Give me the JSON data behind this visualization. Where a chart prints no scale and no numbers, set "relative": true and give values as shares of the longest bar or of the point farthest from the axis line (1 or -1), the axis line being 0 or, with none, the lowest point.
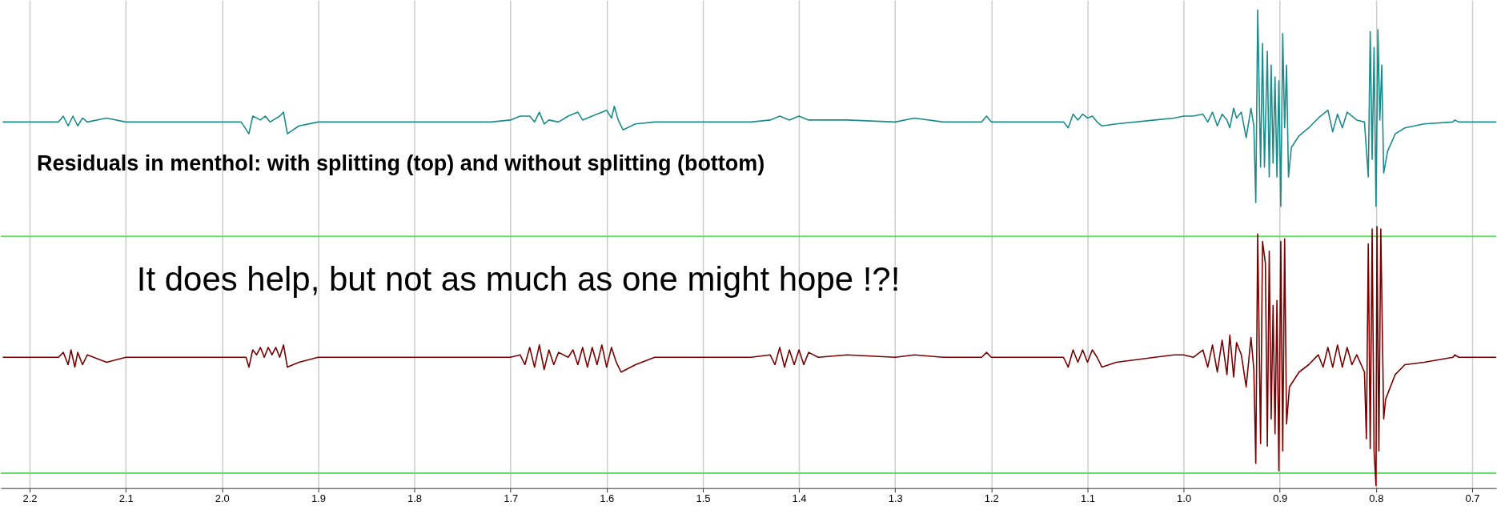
{
  "chart_data": [
    {
      "type": "line",
      "relative": true,
      "title": "Residuals in menthol: with splitting (top) and without splitting (bottom)",
      "grid": "x",
      "tick_labels": false,
      "xlim": [
        2.23,
        0.675
      ],
      "xticks": [
        2.2,
        2.1,
        2,
        1.9,
        1.8,
        1.7,
        1.6,
        1.5,
        1.4,
        1.3,
        1.2,
        1.1,
        1,
        0.9,
        0.8,
        0.7
      ],
      "series": [
        {
          "color": "#1a8c8c",
          "x": [
            2.228,
            2.17,
            2.165,
            2.16,
            2.155,
            2.15,
            2.145,
            2.14,
            2.12,
            2.1,
            2.0,
            1.98,
            1.972,
            1.968,
            1.96,
            1.955,
            1.95,
            1.94,
            1.936,
            1.932,
            1.92,
            1.9,
            1.8,
            1.72,
            1.7,
            1.69,
            1.68,
            1.675,
            1.67,
            1.665,
            1.66,
            1.65,
            1.64,
            1.63,
            1.625,
            1.61,
            1.6,
            1.595,
            1.592,
            1.588,
            1.583,
            1.57,
            1.55,
            1.45,
            1.43,
            1.42,
            1.41,
            1.4,
            1.39,
            1.35,
            1.3,
            1.28,
            1.25,
            1.21,
            1.205,
            1.2,
            1.15,
            1.125,
            1.12,
            1.115,
            1.11,
            1.105,
            1.1,
            1.095,
            1.09,
            1.085,
            1.07,
            1.03,
            1.01,
            1.0,
            0.99,
            0.98,
            0.975,
            0.97,
            0.965,
            0.96,
            0.955,
            0.952,
            0.948,
            0.945,
            0.94,
            0.935,
            0.93,
            0.927,
            0.925,
            0.923,
            0.92,
            0.918,
            0.916,
            0.913,
            0.911,
            0.909,
            0.907,
            0.905,
            0.903,
            0.901,
            0.899,
            0.897,
            0.895,
            0.893,
            0.891,
            0.888,
            0.88,
            0.87,
            0.86,
            0.85,
            0.845,
            0.84,
            0.835,
            0.83,
            0.82,
            0.812,
            0.808,
            0.806,
            0.804,
            0.802,
            0.8,
            0.798,
            0.796,
            0.794,
            0.792,
            0.788,
            0.78,
            0.77,
            0.75,
            0.72,
            0.718,
            0.714,
            0.7,
            0.675
          ],
          "values": [
            0.43,
            0.43,
            0.46,
            0.41,
            0.46,
            0.41,
            0.45,
            0.43,
            0.45,
            0.43,
            0.43,
            0.43,
            0.37,
            0.46,
            0.44,
            0.46,
            0.43,
            0.46,
            0.48,
            0.37,
            0.41,
            0.43,
            0.43,
            0.43,
            0.44,
            0.46,
            0.46,
            0.43,
            0.48,
            0.42,
            0.44,
            0.43,
            0.46,
            0.48,
            0.44,
            0.47,
            0.49,
            0.45,
            0.51,
            0.44,
            0.39,
            0.42,
            0.43,
            0.43,
            0.44,
            0.46,
            0.44,
            0.46,
            0.44,
            0.44,
            0.43,
            0.45,
            0.43,
            0.43,
            0.46,
            0.43,
            0.43,
            0.43,
            0.4,
            0.47,
            0.44,
            0.47,
            0.45,
            0.46,
            0.43,
            0.41,
            0.42,
            0.44,
            0.45,
            0.46,
            0.46,
            0.47,
            0.43,
            0.48,
            0.41,
            0.47,
            0.44,
            0.4,
            0.5,
            0.45,
            0.48,
            0.35,
            0.5,
            0.41,
            0.02,
            1,
            0.2,
            0.83,
            0.2,
            0.79,
            0.15,
            0.72,
            0.22,
            0.66,
            0.15,
            0.64,
            0,
            0.88,
            0.4,
            0.72,
            0.15,
            0.3,
            0.36,
            0.4,
            0.45,
            0.49,
            0.38,
            0.47,
            0.4,
            0.48,
            0.44,
            0.43,
            0.15,
            0.89,
            0.24,
            0.81,
            0,
            0.9,
            0.44,
            0.72,
            0.17,
            0.28,
            0.37,
            0.4,
            0.42,
            0.43,
            0.44,
            0.43,
            0.43,
            0.43
          ]
        }
      ]
    },
    {
      "type": "line",
      "relative": true,
      "annotations": [
        "It does help, but not as much as one might hope !?!"
      ],
      "grid": "x",
      "xlim": [
        2.23,
        0.675
      ],
      "xticks": [
        {
          "value": 2.2,
          "label": "2.2"
        },
        {
          "value": 2.1,
          "label": "2.1"
        },
        {
          "value": 2.0,
          "label": "2.0"
        },
        {
          "value": 1.9,
          "label": "1.9"
        },
        {
          "value": 1.8,
          "label": "1.8"
        },
        {
          "value": 1.7,
          "label": "1.7"
        },
        {
          "value": 1.6,
          "label": "1.6"
        },
        {
          "value": 1.5,
          "label": "1.5"
        },
        {
          "value": 1.4,
          "label": "1.4"
        },
        {
          "value": 1.3,
          "label": "1.3"
        },
        {
          "value": 1.2,
          "label": "1.2"
        },
        {
          "value": 1.1,
          "label": "1.1"
        },
        {
          "value": 1.0,
          "label": "1.0"
        },
        {
          "value": 0.9,
          "label": "0.9"
        },
        {
          "value": 0.8,
          "label": "0.8"
        },
        {
          "value": 0.7,
          "label": "0.7"
        }
      ],
      "ref_lines": [
        {
          "axis": "y",
          "value": 0.96,
          "color": "#66dd66"
        },
        {
          "axis": "y",
          "value": 0,
          "color": "#66dd66"
        }
      ],
      "series": [
        {
          "color": "#7a0000",
          "x": [
            2.228,
            2.17,
            2.165,
            2.16,
            2.157,
            2.153,
            2.15,
            2.145,
            2.14,
            2.12,
            2.1,
            2.0,
            1.975,
            1.972,
            1.968,
            1.964,
            1.96,
            1.956,
            1.952,
            1.948,
            1.944,
            1.94,
            1.936,
            1.932,
            1.92,
            1.9,
            1.8,
            1.72,
            1.7,
            1.69,
            1.685,
            1.68,
            1.675,
            1.67,
            1.665,
            1.66,
            1.655,
            1.65,
            1.64,
            1.635,
            1.63,
            1.625,
            1.62,
            1.615,
            1.61,
            1.605,
            1.6,
            1.595,
            1.59,
            1.585,
            1.57,
            1.55,
            1.45,
            1.43,
            1.425,
            1.42,
            1.415,
            1.41,
            1.405,
            1.4,
            1.395,
            1.39,
            1.38,
            1.35,
            1.3,
            1.28,
            1.25,
            1.21,
            1.205,
            1.2,
            1.15,
            1.125,
            1.12,
            1.115,
            1.11,
            1.105,
            1.1,
            1.095,
            1.09,
            1.085,
            1.07,
            1.03,
            1.01,
            1.0,
            0.99,
            0.98,
            0.975,
            0.97,
            0.965,
            0.96,
            0.955,
            0.952,
            0.948,
            0.945,
            0.94,
            0.935,
            0.93,
            0.927,
            0.925,
            0.923,
            0.92,
            0.918,
            0.915,
            0.913,
            0.911,
            0.909,
            0.907,
            0.905,
            0.903,
            0.901,
            0.899,
            0.897,
            0.895,
            0.893,
            0.89,
            0.88,
            0.87,
            0.86,
            0.855,
            0.85,
            0.845,
            0.84,
            0.835,
            0.83,
            0.825,
            0.82,
            0.812,
            0.81,
            0.808,
            0.806,
            0.804,
            0.802,
            0.8,
            0.799,
            0.797,
            0.795,
            0.792,
            0.79,
            0.78,
            0.77,
            0.75,
            0.72,
            0.718,
            0.714,
            0.7,
            0.675
          ],
          "values": [
            0.47,
            0.47,
            0.49,
            0.44,
            0.5,
            0.43,
            0.49,
            0.44,
            0.48,
            0.45,
            0.47,
            0.47,
            0.47,
            0.43,
            0.5,
            0.48,
            0.51,
            0.47,
            0.51,
            0.48,
            0.51,
            0.47,
            0.52,
            0.43,
            0.45,
            0.47,
            0.47,
            0.47,
            0.47,
            0.48,
            0.44,
            0.51,
            0.43,
            0.52,
            0.42,
            0.5,
            0.44,
            0.49,
            0.47,
            0.5,
            0.44,
            0.51,
            0.43,
            0.51,
            0.44,
            0.52,
            0.43,
            0.51,
            0.45,
            0.41,
            0.44,
            0.47,
            0.47,
            0.48,
            0.44,
            0.51,
            0.43,
            0.5,
            0.44,
            0.5,
            0.44,
            0.49,
            0.47,
            0.48,
            0.47,
            0.48,
            0.47,
            0.47,
            0.49,
            0.47,
            0.47,
            0.47,
            0.43,
            0.5,
            0.45,
            0.5,
            0.45,
            0.5,
            0.47,
            0.43,
            0.45,
            0.47,
            0.48,
            0.48,
            0.47,
            0.5,
            0.43,
            0.52,
            0.41,
            0.54,
            0.4,
            0.56,
            0.39,
            0.53,
            0.48,
            0.35,
            0.55,
            0.42,
            0.04,
            0.97,
            0.12,
            0.94,
            0.85,
            0.11,
            0.9,
            0.22,
            0.68,
            0.16,
            0.7,
            0.01,
            0.94,
            0.09,
            0.95,
            0.2,
            0.35,
            0.41,
            0.44,
            0.48,
            0.43,
            0.51,
            0.43,
            0.52,
            0.43,
            0.51,
            0.44,
            0.48,
            0.41,
            0.14,
            0.93,
            0.1,
            0.99,
            0.09,
            -0.05,
            1,
            0.09,
            0.99,
            0.22,
            0.3,
            0.4,
            0.44,
            0.45,
            0.47,
            0.48,
            0.47,
            0.47,
            0.47
          ]
        }
      ]
    }
  ]
}
